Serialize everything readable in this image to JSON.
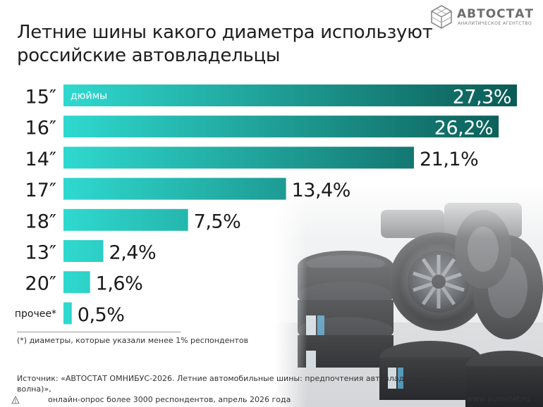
{
  "header": {
    "title": "Летние шины какого диаметра используют российские автовладельцы"
  },
  "brand": {
    "name": "АВТОСТАТ",
    "tagline": "АНАЛИТИЧЕСКОЕ АГЕНТСТВО",
    "logo_icon": "hexagon-cube-icon"
  },
  "chart_data": {
    "type": "bar",
    "orientation": "horizontal",
    "title": "Летние шины какого диаметра используют российские автовладельцы",
    "unit_label": "дюймы",
    "categories": [
      "15″",
      "16″",
      "14″",
      "17″",
      "18″",
      "13″",
      "20″",
      "прочее*"
    ],
    "values": [
      27.3,
      26.2,
      21.1,
      13.4,
      7.5,
      2.4,
      1.6,
      0.5
    ],
    "value_labels": [
      "27,3%",
      "26,2%",
      "21,1%",
      "13,4%",
      "7,5%",
      "2,4%",
      "1,6%",
      "0,5%"
    ],
    "value_label_inside": [
      true,
      true,
      false,
      false,
      false,
      false,
      false,
      false
    ],
    "xlim": [
      0,
      27.3
    ],
    "grid": false,
    "legend": "none",
    "colors": {
      "bar_start": "#2fd9cf",
      "bar_end": "#0b5b55",
      "label_inside": "#ffffff",
      "label_outside": "#1a1a1a"
    }
  },
  "footnote": "(*) диаметры, которые указали менее 1% респондентов",
  "source": {
    "line1": "Источник: «АВТОСТАТ ОМНИБУС-2026. Летние автомобильные шины: предпочтения автовладельцев (восьмая волна)»,",
    "line2": "онлайн-опрос более 3000 респондентов, апрель 2026 года"
  },
  "site": "www.autostat.ru",
  "photo": {
    "icon": "tire-stack-photo"
  }
}
